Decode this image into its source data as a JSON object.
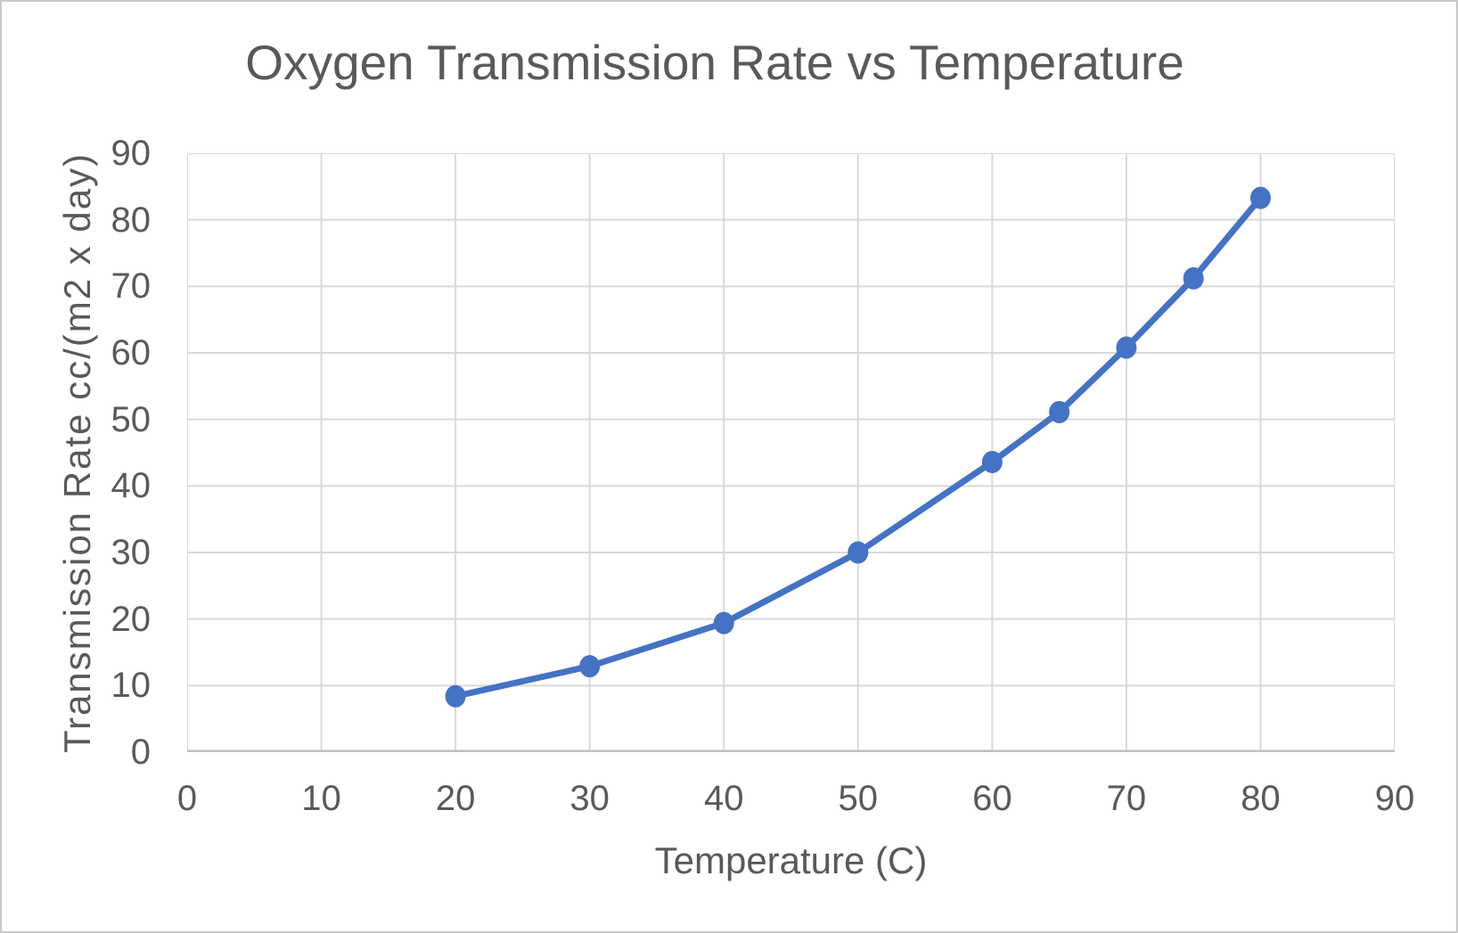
{
  "chart_data": {
    "type": "line",
    "title": "Oxygen Transmission Rate vs Temperature",
    "xlabel": "Temperature (C)",
    "ylabel": "Transmission Rate cc/(m2 x day)",
    "x": [
      20,
      30,
      40,
      50,
      60,
      65,
      70,
      75,
      80
    ],
    "y": [
      8.4,
      12.9,
      19.4,
      30,
      43.6,
      51.1,
      60.8,
      71.2,
      83.3
    ],
    "xlim": [
      0,
      90
    ],
    "ylim": [
      0,
      90
    ],
    "xticks": [
      "0",
      "10",
      "20",
      "30",
      "40",
      "50",
      "60",
      "70",
      "80",
      "90"
    ],
    "yticks": [
      "0",
      "10",
      "20",
      "30",
      "40",
      "50",
      "60",
      "70",
      "80",
      "90"
    ],
    "grid": true,
    "legend": false,
    "line_color": "#4472C4",
    "marker": "circle"
  },
  "styles": {
    "text_color": "#595959",
    "gridline_color": "#D9D9D9",
    "bottom_axis_color": "#BFBFBF",
    "left_axis_color": "#D9D9D9",
    "border_color": "#C8C8C8",
    "background_color": "#FFFFFF"
  }
}
